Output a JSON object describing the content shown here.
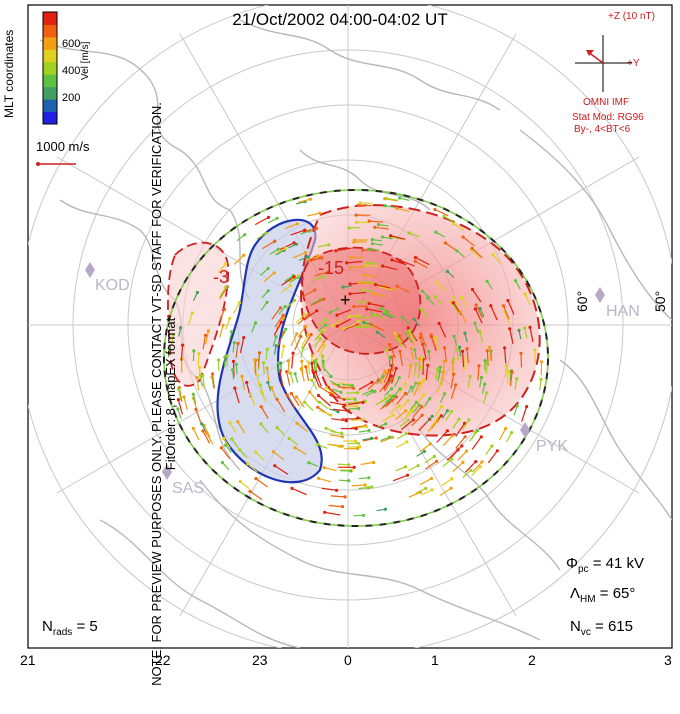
{
  "title": "21/Oct/2002 04:00-04:02 UT",
  "note_line1": "NOTE: FOR PREVIEW PURPOSES ONLY. PLEASE CONTACT VT-SD STAFF FOR VERIFICATION.",
  "note_line2": "FitOrder: 8, mapEX format",
  "coords_label": "MLT coordinates",
  "colorbar": {
    "title": "Vel [m/s]",
    "ticks": [
      "600",
      "400",
      "200"
    ],
    "colors": [
      "#2020e0",
      "#2060b0",
      "#40a060",
      "#60c040",
      "#a0d020",
      "#e0d020",
      "#f0a010",
      "#f06010",
      "#e02010"
    ]
  },
  "scale_vector": "1000 m/s",
  "imf": {
    "top": "+Z (10 nT)",
    "right": "+Y",
    "label": "OMNI IMF",
    "stat1": "Stat Mod: RG96",
    "stat2": "By-, 4<BT<6"
  },
  "contour_labels": [
    "-3",
    "-15"
  ],
  "stations": [
    "KOD",
    "HAN",
    "PYK",
    "SAS"
  ],
  "lat_labels": [
    "60°",
    "50°"
  ],
  "mlt_ticks": [
    "21",
    "22",
    "23",
    "0",
    "1",
    "2",
    "3"
  ],
  "stats": {
    "phi_pc": "41",
    "phi_unit": "kV",
    "lambda_hm": "65°",
    "n_vc": "615",
    "n_rads": "5"
  },
  "colors": {
    "positive": "#e23030",
    "negative": "#2a3fb0",
    "boundary": "#40b040",
    "coast": "#b8b8b8"
  }
}
